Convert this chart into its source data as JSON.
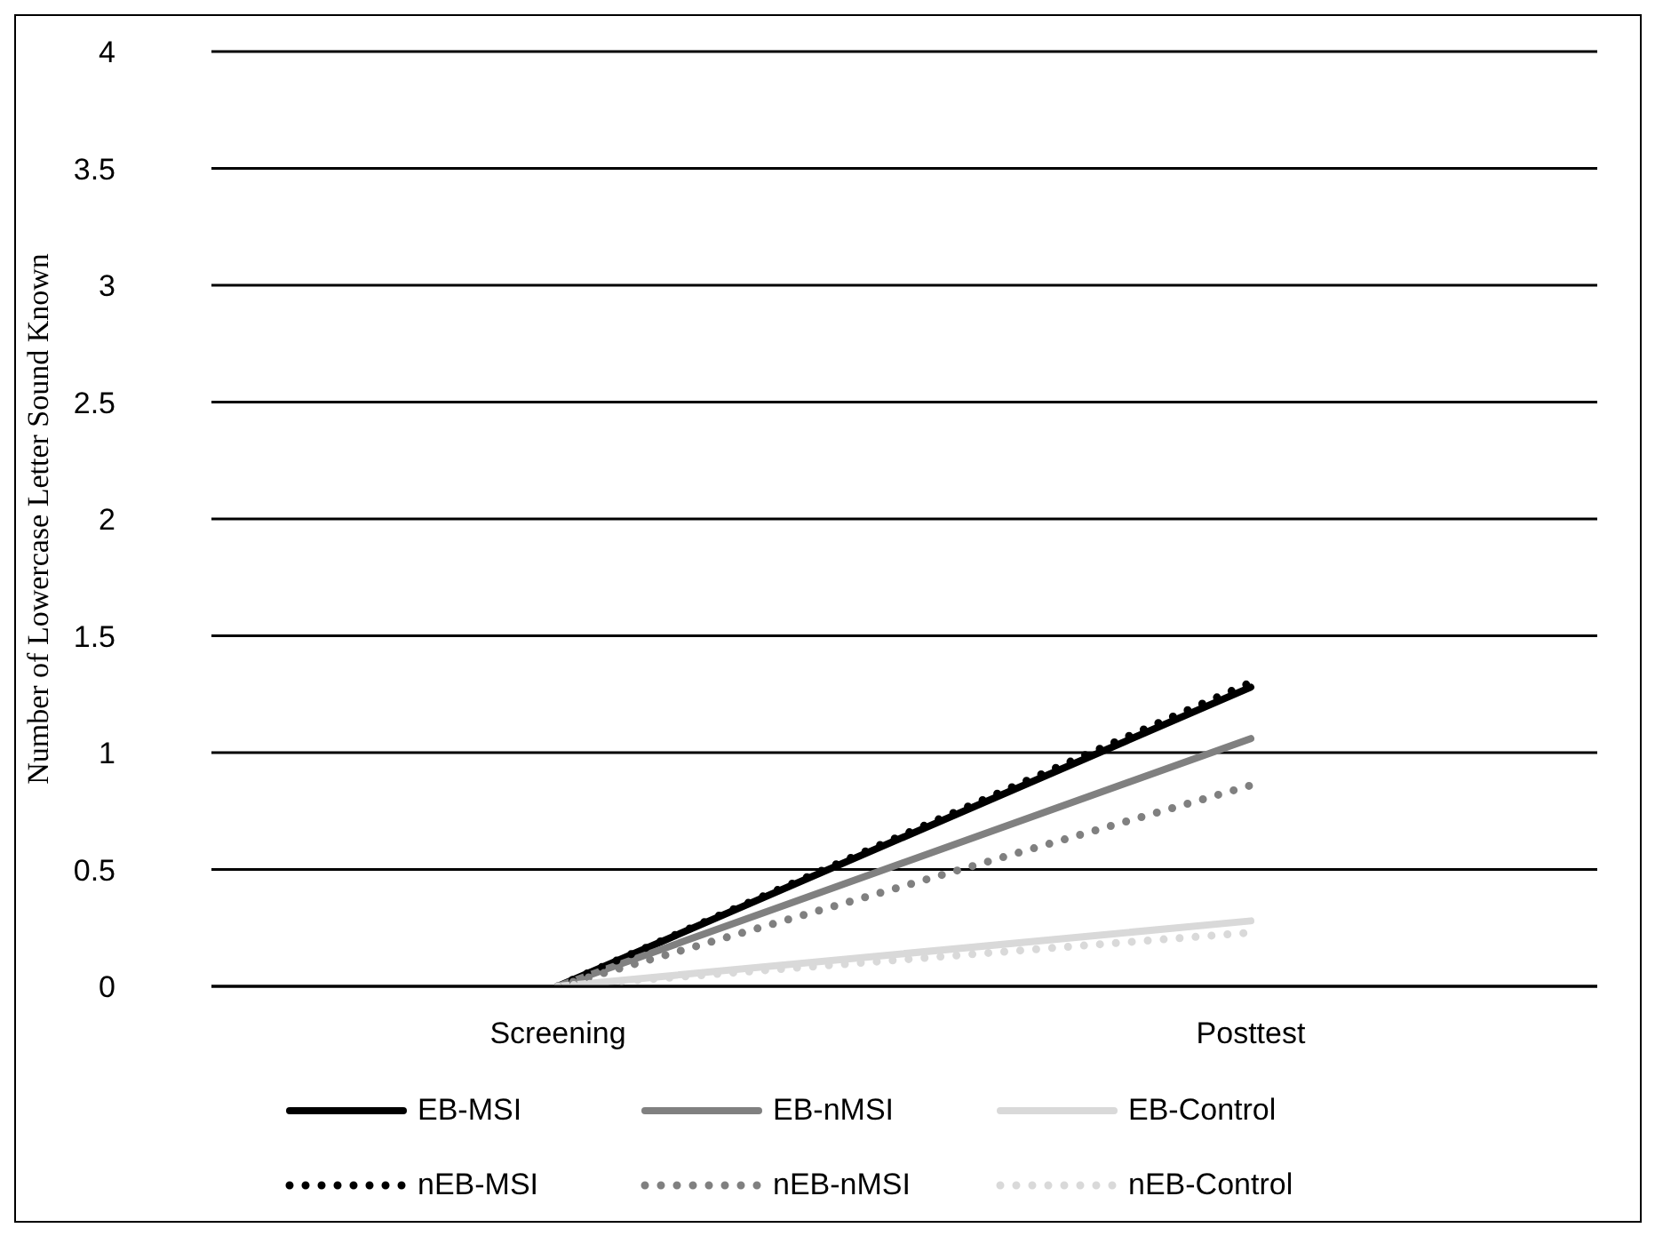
{
  "chart_data": {
    "type": "line",
    "ylabel": "Number of Lowercase Letter Sound Known",
    "categories": [
      "Screening",
      "Posttest"
    ],
    "ylim": [
      0,
      4
    ],
    "yticks": [
      0,
      0.5,
      1,
      1.5,
      2,
      2.5,
      3,
      3.5,
      4
    ],
    "grid": "y",
    "legend": "bottom",
    "marker": "none",
    "series": [
      {
        "name": "EB-MSI",
        "color": "#000000",
        "line_style": "solid",
        "values": [
          0,
          1.28
        ]
      },
      {
        "name": "EB-nMSI",
        "color": "#808080",
        "line_style": "solid",
        "values": [
          0,
          1.06
        ]
      },
      {
        "name": "EB-Control",
        "color": "#d9d9d9",
        "line_style": "solid",
        "values": [
          0,
          0.28
        ]
      },
      {
        "name": "nEB-MSI",
        "color": "#000000",
        "line_style": "dotted",
        "values": [
          0,
          1.3
        ]
      },
      {
        "name": "nEB-nMSI",
        "color": "#808080",
        "line_style": "dotted",
        "values": [
          0,
          0.86
        ]
      },
      {
        "name": "nEB-Control",
        "color": "#d9d9d9",
        "line_style": "dotted",
        "values": [
          0,
          0.23
        ]
      }
    ]
  }
}
